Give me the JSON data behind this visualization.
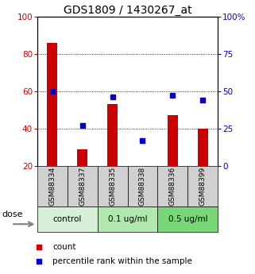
{
  "title": "GDS1809 / 1430267_at",
  "samples": [
    "GSM88334",
    "GSM88337",
    "GSM88335",
    "GSM88338",
    "GSM88336",
    "GSM88399"
  ],
  "count_values": [
    86,
    29,
    53,
    20,
    47,
    40
  ],
  "percentile_values": [
    50,
    27,
    46,
    17,
    47,
    44
  ],
  "groups": [
    {
      "label": "control",
      "cols": [
        0,
        1
      ]
    },
    {
      "label": "0.1 ug/ml",
      "cols": [
        2,
        3
      ]
    },
    {
      "label": "0.5 ug/ml",
      "cols": [
        4,
        5
      ]
    }
  ],
  "group_colors": [
    "#d8f0d8",
    "#b0e8b0",
    "#78d878"
  ],
  "ylim_left": [
    20,
    100
  ],
  "ylim_right": [
    0,
    100
  ],
  "yticks_left": [
    20,
    40,
    60,
    80,
    100
  ],
  "yticks_right": [
    0,
    25,
    50,
    75,
    100
  ],
  "yticklabels_right": [
    "0",
    "25",
    "50",
    "75",
    "100%"
  ],
  "count_color": "#cc0000",
  "percentile_color": "#0000cc",
  "bg_color_sample": "#d0d0d0",
  "title_fontsize": 10,
  "tick_fontsize": 7.5
}
